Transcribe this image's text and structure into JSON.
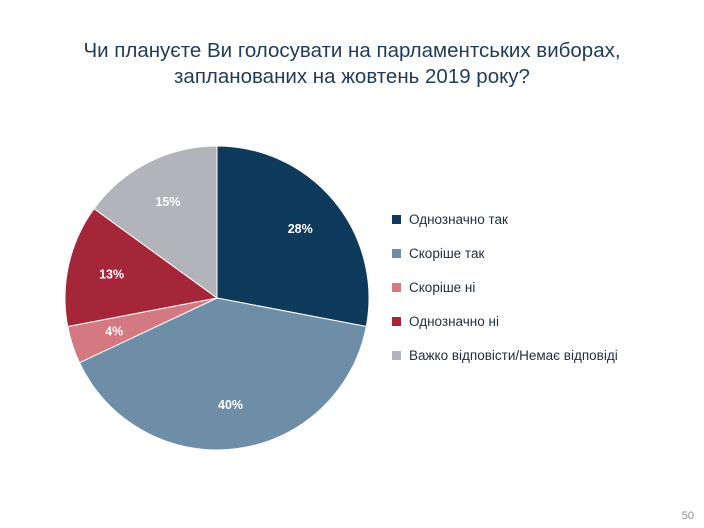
{
  "slide": {
    "title_line1": "Чи плануєте Ви голосувати на парламентських виборах,",
    "title_line2": "запланованих на жовтень 2019 року?",
    "page_number": "50"
  },
  "chart_data": {
    "type": "pie",
    "title": "Чи плануєте Ви голосувати на парламентських виборах, запланованих на жовтень 2019 року?",
    "legend_position": "right",
    "slices": [
      {
        "name": "Однозначно так",
        "value": 28,
        "label": "28%",
        "color": "#0e3a5c",
        "label_color": "#ffffff"
      },
      {
        "name": "Скоріше так",
        "value": 40,
        "label": "40%",
        "color": "#6d8ea6",
        "label_color": "#ffffff"
      },
      {
        "name": "Скоріше ні",
        "value": 4,
        "label": "4%",
        "color": "#d47882",
        "label_color": "#ffffff"
      },
      {
        "name": "Однозначно ні",
        "value": 13,
        "label": "13%",
        "color": "#a42638",
        "label_color": "#ffffff"
      },
      {
        "name": "Важко відповісти/Немає відповіді",
        "value": 15,
        "label": "15%",
        "color": "#b3b3ba",
        "label_color": "#ffffff"
      }
    ]
  }
}
